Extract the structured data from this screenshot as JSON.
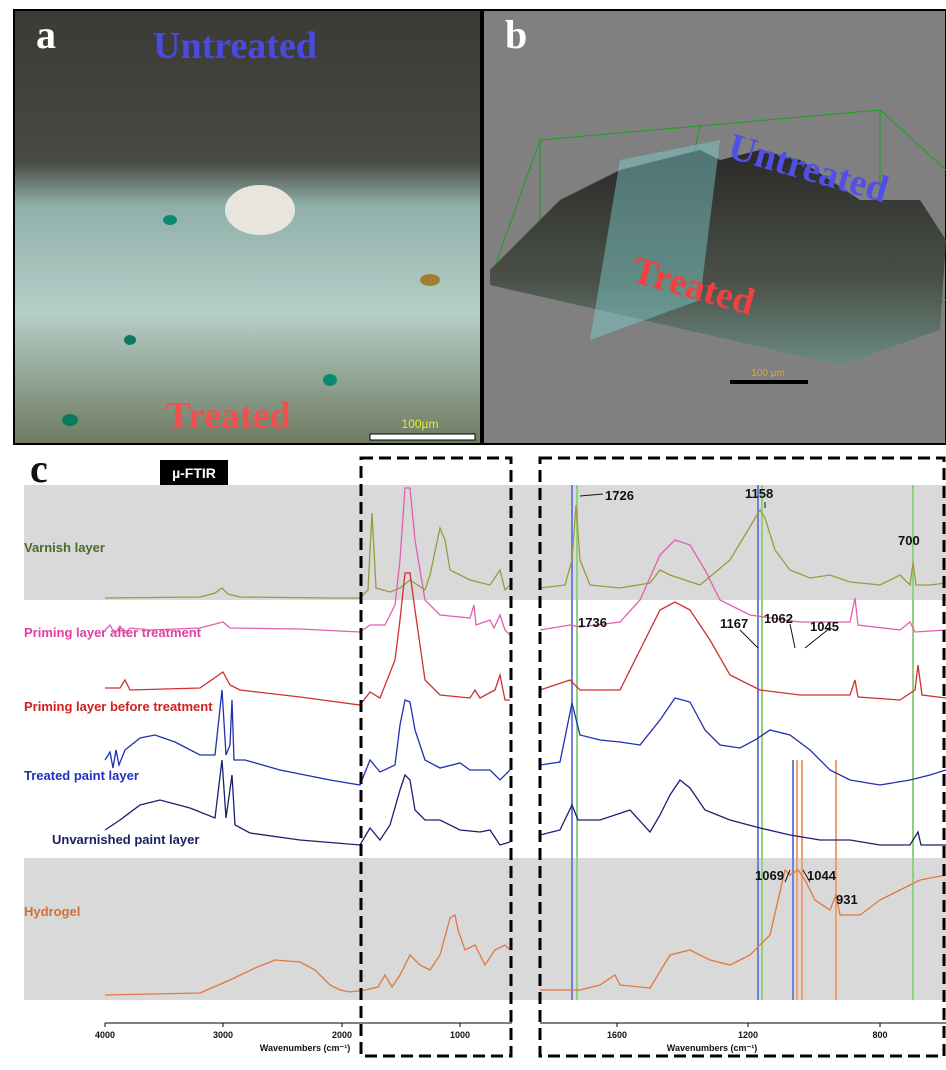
{
  "panels": {
    "a": {
      "label": "a",
      "top_text": "Untreated",
      "bottom_text": "Treated",
      "scale_bar": "100µm"
    },
    "b": {
      "label": "b",
      "top_text": "Untreated",
      "bottom_text": "Treated",
      "scale_bar": "100 µm"
    },
    "c": {
      "label": "c",
      "method": "µ-FTIR",
      "layers": [
        "Varnish layer",
        "Priming layer after treatment",
        "Priming layer before treatment",
        "Treated paint layer",
        "Unvarnished paint layer",
        "Hydrogel"
      ],
      "left_axis": {
        "ticks": [
          "4000",
          "3000",
          "2000",
          "1000"
        ],
        "title": "Wavenumbers (cm⁻¹)"
      },
      "right_axis": {
        "ticks": [
          "1600",
          "1200",
          "800"
        ],
        "title": "Wavenumbers (cm⁻¹)"
      },
      "peaks": [
        "1726",
        "1158",
        "700",
        "1736",
        "1167",
        "1062",
        "1045",
        "1069",
        "1044",
        "931"
      ]
    }
  }
}
